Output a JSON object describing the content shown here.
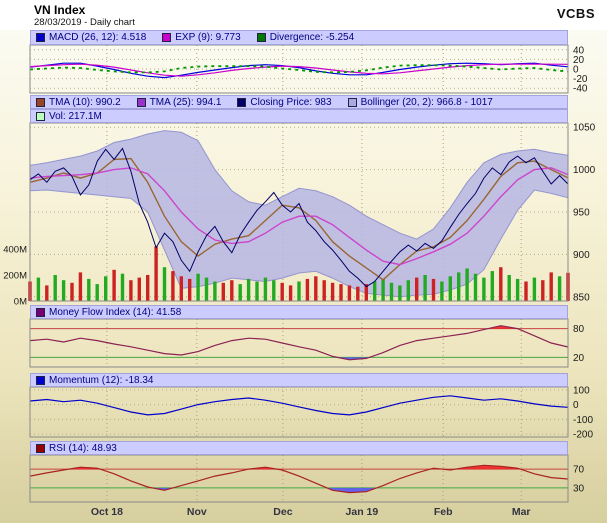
{
  "header": {
    "title": "VN Index",
    "subtitle": "28/03/2019 - Daily chart",
    "brand": "VCBS"
  },
  "legends": {
    "macd": {
      "items": [
        {
          "label": "MACD (26, 12): 4.518",
          "color": "#0000cc"
        },
        {
          "label": "EXP (9): 9.773",
          "color": "#cc00cc"
        },
        {
          "label": "Divergence: -5.254",
          "color": "#007700"
        }
      ]
    },
    "price_row1": {
      "items": [
        {
          "label": "TMA (10): 990.2",
          "color": "#994422"
        },
        {
          "label": "TMA (25): 994.1",
          "color": "#9933cc"
        },
        {
          "label": "Closing Price: 983",
          "color": "#000066"
        },
        {
          "label": "Bollinger (20, 2): 966.8 - 1017",
          "color": "#aaaae0"
        }
      ]
    },
    "price_row2": {
      "items": [
        {
          "label": "Vol: 217.1M",
          "color": "#bbffbb"
        }
      ]
    },
    "mfi": {
      "items": [
        {
          "label": "Money Flow Index (14): 41.58",
          "color": "#770077"
        }
      ]
    },
    "momentum": {
      "items": [
        {
          "label": "Momentum (12): -18.34",
          "color": "#0000cc"
        }
      ]
    },
    "rsi": {
      "items": [
        {
          "label": "RSI (14): 48.93",
          "color": "#990000"
        }
      ]
    }
  },
  "xaxis": {
    "labels": [
      "Oct 18",
      "Nov",
      "Dec",
      "Jan 19",
      "Feb",
      "Mar"
    ],
    "fracs": [
      0.143,
      0.31,
      0.47,
      0.617,
      0.768,
      0.913
    ]
  },
  "chart_data": [
    {
      "name": "macd",
      "type": "line",
      "title": "MACD (26, 12) with EXP (9) signal and Divergence",
      "ylim": [
        -50,
        50
      ],
      "yticks": [
        40,
        20,
        0,
        -20,
        -40
      ],
      "series": [
        {
          "name": "macd",
          "color": "#0000dd",
          "width": 1.2,
          "x_step": 4,
          "values": [
            4,
            8,
            12,
            12,
            6,
            -1,
            -9,
            -15,
            -18,
            -13,
            -7,
            -2,
            3,
            7,
            9,
            7,
            3,
            -4,
            -9,
            -12,
            -12,
            -7,
            -1,
            4,
            8,
            11,
            12,
            11,
            9,
            11,
            12,
            8,
            4.5
          ]
        },
        {
          "name": "exp",
          "color": "#cc00cc",
          "width": 1.2,
          "x_step": 4,
          "values": [
            5,
            7,
            9,
            10,
            8,
            4,
            -2,
            -8,
            -13,
            -15,
            -12,
            -8,
            -3,
            1,
            4,
            6,
            5,
            2,
            -2,
            -6,
            -9,
            -10,
            -8,
            -4,
            0,
            4,
            7,
            9,
            10,
            10,
            10,
            10,
            9.8
          ]
        },
        {
          "name": "divergence",
          "color": "#009900",
          "width": 1.8,
          "dash": "3,4",
          "x_step": 4,
          "values": [
            -1,
            1,
            3,
            2,
            -2,
            -5,
            -7,
            -7,
            -5,
            2,
            5,
            6,
            6,
            6,
            5,
            1,
            -2,
            -6,
            -7,
            -6,
            -3,
            3,
            7,
            8,
            8,
            7,
            5,
            2,
            -1,
            1,
            2,
            -2,
            -5.3
          ]
        }
      ]
    },
    {
      "name": "price",
      "type": "mixed",
      "title": "VN Index price with TMA(10), TMA(25), Bollinger(20,2) and Volume",
      "ylim": [
        845,
        1055
      ],
      "yticks": [
        1050,
        1000,
        950,
        900,
        850
      ],
      "band": {
        "color": "#b6b6e4",
        "edge_color": "#9494d0",
        "x_step": 4,
        "upper": [
          1005,
          1008,
          1012,
          1016,
          1022,
          1032,
          1036,
          1042,
          1046,
          1044,
          1034,
          1000,
          975,
          962,
          958,
          968,
          978,
          975,
          968,
          958,
          945,
          935,
          925,
          918,
          930,
          955,
          985,
          1008,
          1018,
          1022,
          1024,
          1020,
          1017
        ],
        "lower": [
          975,
          976,
          974,
          972,
          970,
          968,
          966,
          950,
          905,
          860,
          862,
          866,
          872,
          870,
          868,
          872,
          878,
          880,
          872,
          862,
          854,
          852,
          850,
          852,
          853,
          858,
          865,
          882,
          918,
          952,
          976,
          972,
          966.8
        ]
      },
      "series": [
        {
          "name": "tma10",
          "color": "#996633",
          "width": 1.4,
          "x_step": 4,
          "values": [
            985,
            990,
            996,
            990,
            996,
            1012,
            1013,
            985,
            945,
            915,
            898,
            912,
            918,
            922,
            940,
            958,
            955,
            940,
            915,
            898,
            884,
            870,
            888,
            904,
            909,
            920,
            940,
            965,
            992,
            1008,
            1010,
            1000,
            990.2
          ]
        },
        {
          "name": "tma25",
          "color": "#cc44cc",
          "width": 1.4,
          "x_step": 4,
          "values": [
            990,
            992,
            993,
            994,
            996,
            1000,
            1002,
            995,
            975,
            950,
            930,
            917,
            913,
            915,
            925,
            938,
            945,
            945,
            935,
            920,
            905,
            892,
            888,
            895,
            903,
            912,
            925,
            945,
            968,
            988,
            1000,
            1002,
            994.1
          ]
        },
        {
          "name": "close",
          "color": "#000066",
          "width": 1,
          "x_step": 2,
          "values": [
            988,
            995,
            985,
            998,
            1002,
            992,
            970,
            982,
            1010,
            1024,
            1012,
            1025,
            998,
            960,
            938,
            908,
            925,
            915,
            893,
            880,
            903,
            922,
            933,
            915,
            902,
            923,
            938,
            952,
            962,
            973,
            958,
            950,
            960,
            938,
            928,
            915,
            905,
            893,
            880,
            872,
            862,
            868,
            880,
            892,
            903,
            911,
            904,
            913,
            907,
            916,
            932,
            947,
            960,
            972,
            990,
            1002,
            994,
            1009,
            1016,
            1008,
            1014,
            998,
            983,
            993,
            983
          ]
        }
      ],
      "volume": {
        "unit": "M",
        "up_color": "#22aa22",
        "down_color": "#cc2222",
        "x_step": 2,
        "axis": [
          {
            "label": "400M",
            "value": 400
          },
          {
            "label": "200M",
            "value": 200
          },
          {
            "label": "0M",
            "value": 0
          }
        ],
        "values": [
          150,
          180,
          120,
          200,
          160,
          140,
          220,
          170,
          130,
          190,
          240,
          210,
          160,
          180,
          200,
          420,
          260,
          230,
          190,
          170,
          210,
          180,
          150,
          140,
          160,
          130,
          170,
          150,
          180,
          160,
          140,
          120,
          150,
          170,
          190,
          160,
          140,
          130,
          120,
          110,
          130,
          150,
          170,
          140,
          120,
          160,
          180,
          200,
          170,
          150,
          190,
          220,
          250,
          210,
          180,
          230,
          260,
          200,
          170,
          150,
          180,
          160,
          220,
          190,
          217
        ]
      }
    },
    {
      "name": "mfi",
      "type": "line",
      "title": "Money Flow Index (14)",
      "ylim": [
        0,
        100
      ],
      "yticks": [
        80,
        20
      ],
      "hlines": [
        {
          "y": 80,
          "color": "#cc4444"
        },
        {
          "y": 20,
          "color": "#44aa44"
        }
      ],
      "fills": {
        "above": 80,
        "below": 20,
        "above_color": "#ee2222",
        "below_color": "#5555ee"
      },
      "series": [
        {
          "name": "mfi",
          "color": "#8b2252",
          "width": 1.2,
          "x_step": 4,
          "values": [
            55,
            58,
            52,
            60,
            55,
            48,
            42,
            35,
            28,
            25,
            32,
            45,
            55,
            60,
            58,
            50,
            42,
            35,
            22,
            15,
            18,
            30,
            45,
            55,
            60,
            65,
            70,
            78,
            86,
            80,
            65,
            50,
            41.6
          ]
        }
      ]
    },
    {
      "name": "momentum",
      "type": "line",
      "title": "Momentum (12)",
      "ylim": [
        -220,
        120
      ],
      "yticks": [
        100,
        0,
        -100,
        -200
      ],
      "series": [
        {
          "name": "momentum",
          "color": "#0000cc",
          "width": 1.2,
          "x_step": 4,
          "values": [
            25,
            35,
            20,
            30,
            10,
            -20,
            -50,
            -70,
            -60,
            -30,
            0,
            20,
            35,
            45,
            30,
            10,
            -15,
            -40,
            -60,
            -70,
            -50,
            -20,
            10,
            30,
            50,
            60,
            45,
            30,
            40,
            25,
            5,
            -10,
            -18.3
          ]
        }
      ]
    },
    {
      "name": "rsi",
      "type": "line",
      "title": "RSI (14)",
      "ylim": [
        0,
        100
      ],
      "yticks": [
        70,
        30
      ],
      "hlines": [
        {
          "y": 70,
          "color": "#cc4444"
        },
        {
          "y": 30,
          "color": "#44aa44"
        }
      ],
      "fills": {
        "above": 70,
        "below": 30,
        "above_color": "#ee2222",
        "below_color": "#5555ee"
      },
      "series": [
        {
          "name": "rsi",
          "color": "#aa2222",
          "width": 1.2,
          "x_step": 4,
          "values": [
            55,
            62,
            68,
            74,
            72,
            60,
            45,
            32,
            25,
            35,
            45,
            55,
            62,
            70,
            74,
            68,
            55,
            40,
            25,
            20,
            22,
            35,
            50,
            62,
            72,
            68,
            74,
            78,
            76,
            72,
            60,
            52,
            48.9
          ]
        }
      ]
    }
  ]
}
